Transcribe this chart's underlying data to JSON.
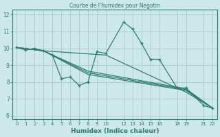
{
  "title": "Courbe de l'humidex pour Negotin",
  "xlabel": "Humidex (Indice chaleur)",
  "background_color": "#cce8e8",
  "grid_color": "#aacece",
  "line_color": "#2e7d6e",
  "xlim": [
    -0.5,
    22.5
  ],
  "ylim": [
    5.8,
    12.3
  ],
  "xticks": [
    0,
    1,
    2,
    3,
    4,
    5,
    6,
    7,
    8,
    9,
    10,
    12,
    13,
    14,
    15,
    16,
    18,
    19,
    21,
    22
  ],
  "yticks": [
    6,
    7,
    8,
    9,
    10,
    11,
    12
  ],
  "lines": [
    {
      "x": [
        0,
        1,
        2,
        3,
        4,
        5,
        6,
        7,
        8,
        9,
        10,
        12,
        13,
        14,
        15,
        16,
        18,
        19,
        21,
        22
      ],
      "y": [
        10.05,
        9.9,
        10.0,
        9.85,
        9.6,
        8.2,
        8.3,
        7.8,
        8.0,
        9.8,
        9.7,
        11.55,
        11.15,
        10.3,
        9.35,
        9.35,
        7.65,
        7.65,
        6.6,
        6.45
      ],
      "marker": true
    },
    {
      "x": [
        0,
        3,
        8,
        19,
        22
      ],
      "y": [
        10.05,
        9.85,
        8.65,
        7.6,
        6.45
      ],
      "marker": false
    },
    {
      "x": [
        0,
        3,
        8,
        19,
        22
      ],
      "y": [
        10.05,
        9.85,
        8.55,
        7.55,
        6.45
      ],
      "marker": false
    },
    {
      "x": [
        0,
        3,
        8,
        19,
        22
      ],
      "y": [
        10.05,
        9.85,
        8.45,
        7.5,
        6.45
      ],
      "marker": false
    },
    {
      "x": [
        0,
        3,
        10,
        19,
        22
      ],
      "y": [
        10.05,
        9.85,
        9.6,
        7.4,
        6.45
      ],
      "marker": false
    }
  ]
}
